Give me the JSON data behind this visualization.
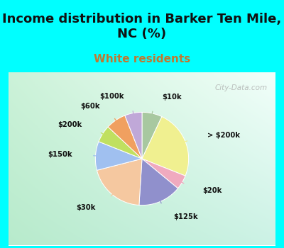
{
  "title": "Income distribution in Barker Ten Mile,\nNC (%)",
  "subtitle": "White residents",
  "title_color": "#111111",
  "subtitle_color": "#c07830",
  "bg_color": "#00ffff",
  "watermark": "City-Data.com",
  "labels": [
    "$10k",
    "> $200k",
    "$20k",
    "$125k",
    "$30k",
    "$150k",
    "$200k",
    "$60k",
    "$100k"
  ],
  "values": [
    7,
    24,
    5,
    15,
    20,
    10,
    6,
    7,
    6
  ],
  "colors": [
    "#a8c8a0",
    "#f0f090",
    "#f0aabf",
    "#9090cc",
    "#f5c8a0",
    "#a0c0f0",
    "#c0e060",
    "#f0a060",
    "#c0a8d8"
  ],
  "title_fontsize": 13,
  "subtitle_fontsize": 11
}
